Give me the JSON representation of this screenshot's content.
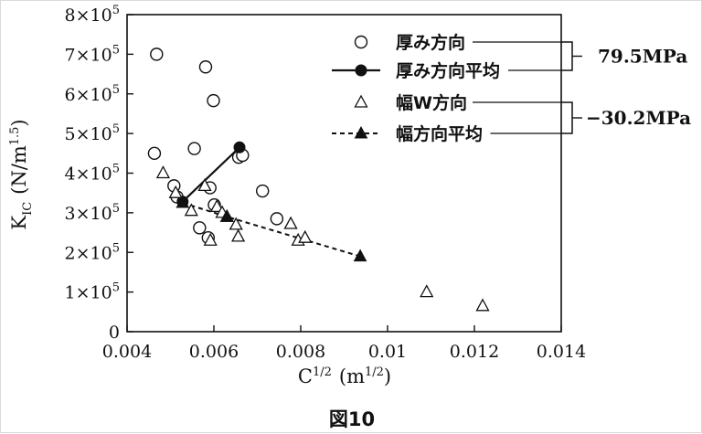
{
  "chart_data": {
    "type": "scatter",
    "caption": "図10",
    "xlabel_base": "C",
    "xlabel_exp": "1/2",
    "xlabel_unit_open": "(m",
    "xlabel_unit_exp": "1/2",
    "xlabel_unit_close": ")",
    "ylabel_base": "K",
    "ylabel_sub": "IC",
    "ylabel_unit_open": "(N/m",
    "ylabel_unit_exp": "1.5",
    "ylabel_unit_close": ")",
    "xlim": [
      0.004,
      0.014
    ],
    "ylim": [
      0,
      800000
    ],
    "x_ticks": [
      {
        "value": 0.004,
        "label": "0.004"
      },
      {
        "value": 0.006,
        "label": "0.006"
      },
      {
        "value": 0.008,
        "label": "0.008"
      },
      {
        "value": 0.01,
        "label": "0.01"
      },
      {
        "value": 0.012,
        "label": "0.012"
      },
      {
        "value": 0.014,
        "label": "0.014"
      }
    ],
    "y_ticks": [
      {
        "value": 0,
        "label": "0",
        "mant": "",
        "exp": ""
      },
      {
        "value": 100000,
        "label": "",
        "mant": "1×10",
        "exp": "5"
      },
      {
        "value": 200000,
        "label": "",
        "mant": "2×10",
        "exp": "5"
      },
      {
        "value": 300000,
        "label": "",
        "mant": "3×10",
        "exp": "5"
      },
      {
        "value": 400000,
        "label": "",
        "mant": "4×10",
        "exp": "5"
      },
      {
        "value": 500000,
        "label": "",
        "mant": "5×10",
        "exp": "5"
      },
      {
        "value": 600000,
        "label": "",
        "mant": "6×10",
        "exp": "5"
      },
      {
        "value": 700000,
        "label": "",
        "mant": "7×10",
        "exp": "5"
      },
      {
        "value": 800000,
        "label": "",
        "mant": "8×10",
        "exp": "5"
      }
    ],
    "grid": false,
    "legend_position": "top-right",
    "series": [
      {
        "name": "厚み方向",
        "marker": "open-circle",
        "line": "none",
        "points": [
          [
            0.00468,
            700000
          ],
          [
            0.00581,
            668000
          ],
          [
            0.00599,
            583000
          ],
          [
            0.00555,
            462000
          ],
          [
            0.00463,
            450000
          ],
          [
            0.00657,
            440000
          ],
          [
            0.00666,
            445000
          ],
          [
            0.00508,
            368000
          ],
          [
            0.00591,
            363000
          ],
          [
            0.00712,
            355000
          ],
          [
            0.00515,
            340000
          ],
          [
            0.00601,
            320000
          ],
          [
            0.00745,
            285000
          ],
          [
            0.00567,
            262000
          ],
          [
            0.00587,
            237000
          ]
        ]
      },
      {
        "name": "厚み方向平均",
        "marker": "filled-circle",
        "line": "solid",
        "points": [
          [
            0.00528,
            328000
          ],
          [
            0.00659,
            465000
          ]
        ]
      },
      {
        "name": "幅W方向",
        "marker": "open-triangle",
        "line": "none",
        "points": [
          [
            0.00483,
            400000
          ],
          [
            0.00512,
            350000
          ],
          [
            0.00579,
            368000
          ],
          [
            0.00607,
            315000
          ],
          [
            0.00548,
            305000
          ],
          [
            0.00619,
            300000
          ],
          [
            0.0063,
            290000
          ],
          [
            0.00651,
            270000
          ],
          [
            0.00777,
            272000
          ],
          [
            0.00656,
            240000
          ],
          [
            0.00592,
            230000
          ],
          [
            0.00794,
            230000
          ],
          [
            0.0081,
            237000
          ],
          [
            0.0109,
            100000
          ],
          [
            0.01219,
            65000
          ]
        ]
      },
      {
        "name": "幅方向平均",
        "marker": "filled-triangle",
        "line": "dashed",
        "points": [
          [
            0.00528,
            325000
          ],
          [
            0.0063,
            290000
          ],
          [
            0.00937,
            190000
          ]
        ]
      }
    ],
    "annotations": [
      {
        "text": "79.5MPa",
        "groups": [
          "厚み方向",
          "厚み方向平均"
        ]
      },
      {
        "text": "−30.2MPa",
        "groups": [
          "幅W方向",
          "幅方向平均"
        ]
      }
    ]
  }
}
